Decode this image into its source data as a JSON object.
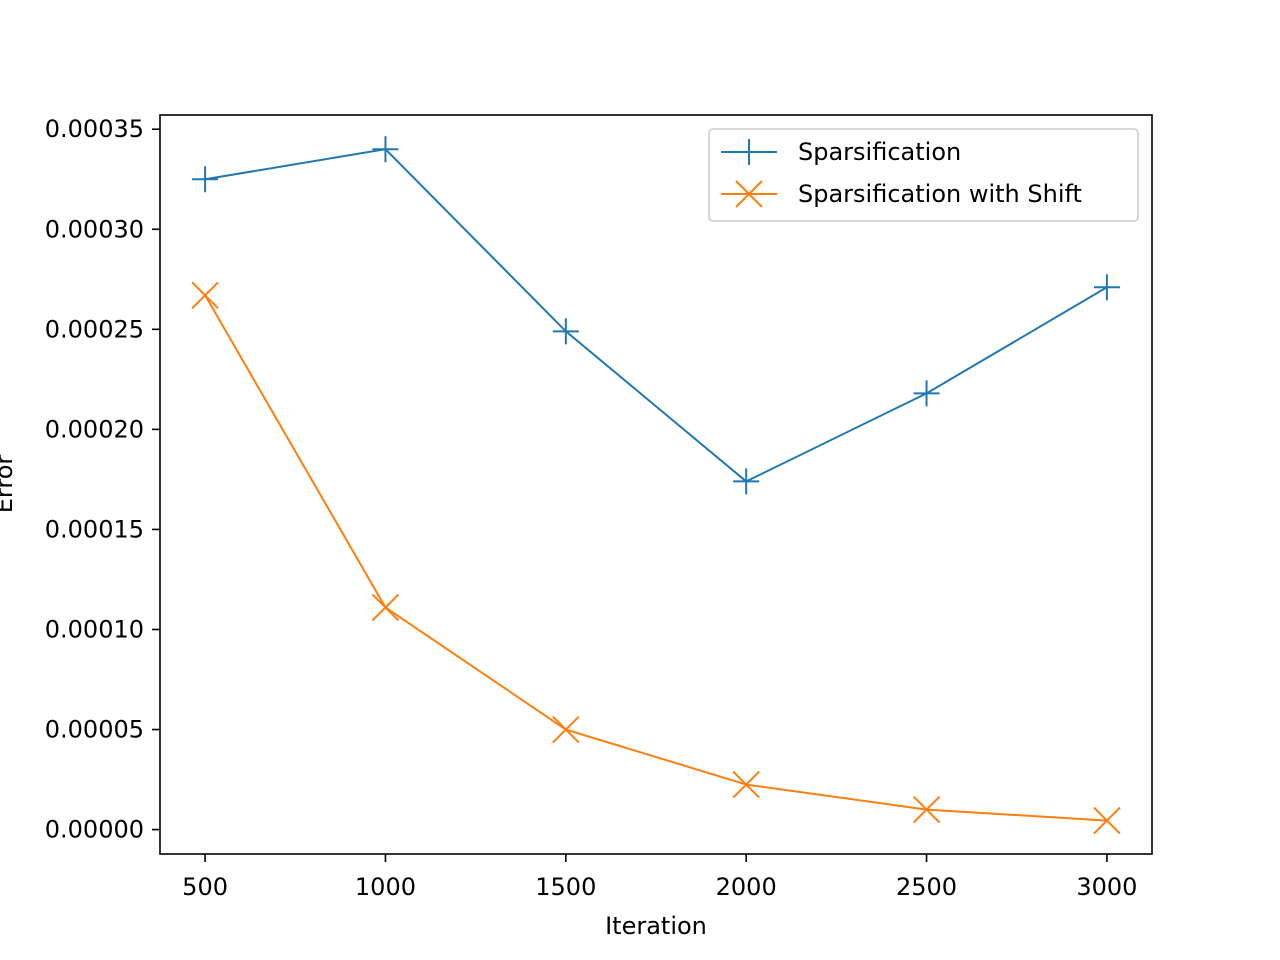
{
  "chart_data": {
    "type": "line",
    "xlabel": "Iteration",
    "ylabel": "Error",
    "xlim": [
      375,
      3125
    ],
    "ylim": [
      -1.22e-05,
      0.0003571
    ],
    "xticks": [
      500,
      1000,
      1500,
      2000,
      2500,
      3000
    ],
    "xtick_labels": [
      "500",
      "1000",
      "1500",
      "2000",
      "2500",
      "3000"
    ],
    "yticks": [
      0.0,
      5e-05,
      0.0001,
      0.00015,
      0.0002,
      0.00025,
      0.0003,
      0.00035
    ],
    "ytick_labels": [
      "0.00000",
      "0.00005",
      "0.00010",
      "0.00015",
      "0.00020",
      "0.00025",
      "0.00030",
      "0.00035"
    ],
    "grid": false,
    "legend_position": "top-right",
    "x": [
      500,
      1000,
      1500,
      2000,
      2500,
      3000
    ],
    "series": [
      {
        "name": "Sparsification",
        "marker": "plus",
        "color": "#1f77b4",
        "values": [
          0.000325,
          0.00034,
          0.000249,
          0.000174,
          0.000218,
          0.000271
        ]
      },
      {
        "name": "Sparsification with Shift",
        "marker": "x",
        "color": "#ff7f0e",
        "values": [
          0.000267,
          0.000111,
          5e-05,
          2.25e-05,
          1e-05,
          4.5e-06
        ]
      }
    ]
  }
}
